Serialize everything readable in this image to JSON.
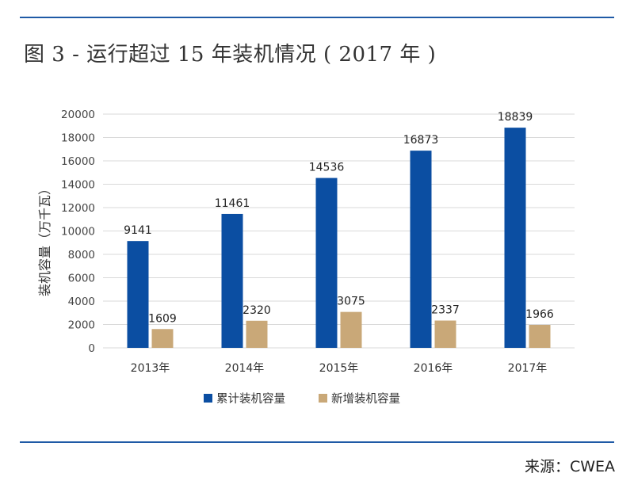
{
  "figure": {
    "title": "图 3 - 运行超过 15 年装机情况 ( 2017 年 )",
    "source": "来源：CWEA"
  },
  "colors": {
    "rule": "#1f5aa6",
    "series_cumulative": "#0b4ea2",
    "series_new": "#c9a878",
    "grid": "#d9d9d9"
  },
  "chart_data": {
    "type": "bar",
    "categories": [
      "2013年",
      "2014年",
      "2015年",
      "2016年",
      "2017年"
    ],
    "series": [
      {
        "name": "累计装机容量",
        "values": [
          9141,
          11461,
          14536,
          16873,
          18839
        ]
      },
      {
        "name": "新增装机容量",
        "values": [
          1609,
          2320,
          3075,
          2337,
          1966
        ]
      }
    ],
    "ylabel": "装机容量（万千瓦）",
    "xlabel": "",
    "ylim": [
      0,
      20000
    ],
    "yticks": [
      0,
      2000,
      4000,
      6000,
      8000,
      10000,
      12000,
      14000,
      16000,
      18000,
      20000
    ],
    "grid": true,
    "legend": "bottom"
  }
}
